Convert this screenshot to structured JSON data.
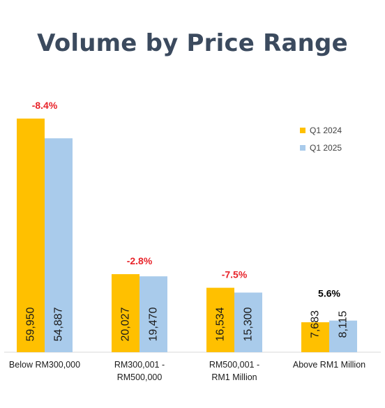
{
  "title": "Volume by Price Range",
  "colors": {
    "q1_2024": "#FFC000",
    "q1_2025": "#A9CBEB",
    "decline": "#E8232A",
    "growth": "#000000"
  },
  "chart_data": {
    "type": "bar",
    "title": "Volume by Price Range",
    "categories": [
      [
        "Below RM300,000"
      ],
      [
        "RM300,001 -",
        "RM500,000"
      ],
      [
        "RM500,001 -",
        "RM1 Million"
      ],
      [
        "Above RM1 Million"
      ]
    ],
    "series": [
      {
        "name": "Q1 2024",
        "values": [
          59950,
          20027,
          16534,
          7683
        ],
        "labels": [
          "59,950",
          "20,027",
          "16,534",
          "7,683"
        ]
      },
      {
        "name": "Q1 2025",
        "values": [
          54887,
          19470,
          15300,
          8115
        ],
        "labels": [
          "54,887",
          "19,470",
          "15,300",
          "8,115"
        ]
      }
    ],
    "change_labels": [
      "-8.4%",
      "-2.8%",
      "-7.5%",
      "5.6%"
    ],
    "change_direction": [
      "down",
      "down",
      "down",
      "up"
    ],
    "ylim": [
      0,
      59950
    ],
    "legend": "top-right",
    "grid": false
  }
}
